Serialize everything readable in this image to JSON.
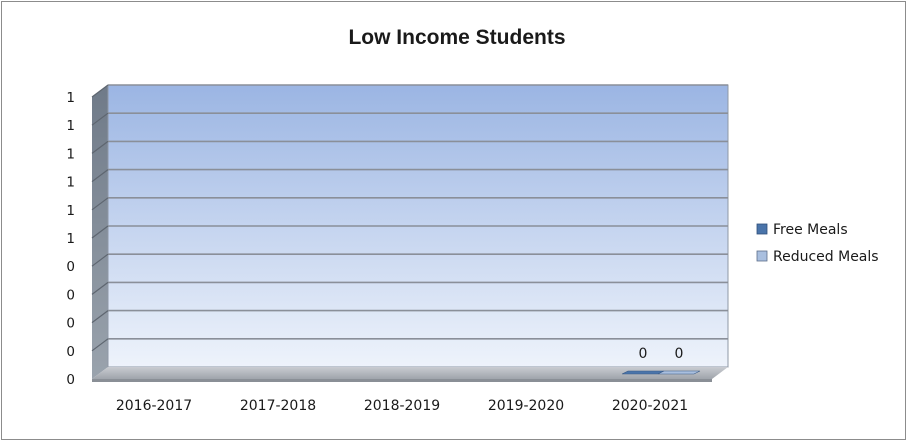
{
  "chart_data": {
    "type": "bar",
    "title": "Low Income Students",
    "categories": [
      "2016-2017",
      "2017-2018",
      "2018-2019",
      "2019-2020",
      "2020-2021"
    ],
    "series": [
      {
        "name": "Free Meals",
        "values": [
          null,
          null,
          null,
          null,
          0
        ],
        "color": "#4a74aa"
      },
      {
        "name": "Reduced Meals",
        "values": [
          null,
          null,
          null,
          null,
          0
        ],
        "color": "#a9bfdf"
      }
    ],
    "data_labels": [
      {
        "category": "2020-2021",
        "series": "Free Meals",
        "text": "0"
      },
      {
        "category": "2020-2021",
        "series": "Reduced Meals",
        "text": "0"
      }
    ],
    "y_tick_labels": [
      "0",
      "0",
      "0",
      "0",
      "0",
      "1",
      "1",
      "1",
      "1",
      "1",
      "1"
    ],
    "xlabel": "",
    "ylabel": "",
    "ylim": [
      0,
      1
    ],
    "grid": true,
    "legend_position": "right",
    "style": "3d-clustered-column"
  }
}
